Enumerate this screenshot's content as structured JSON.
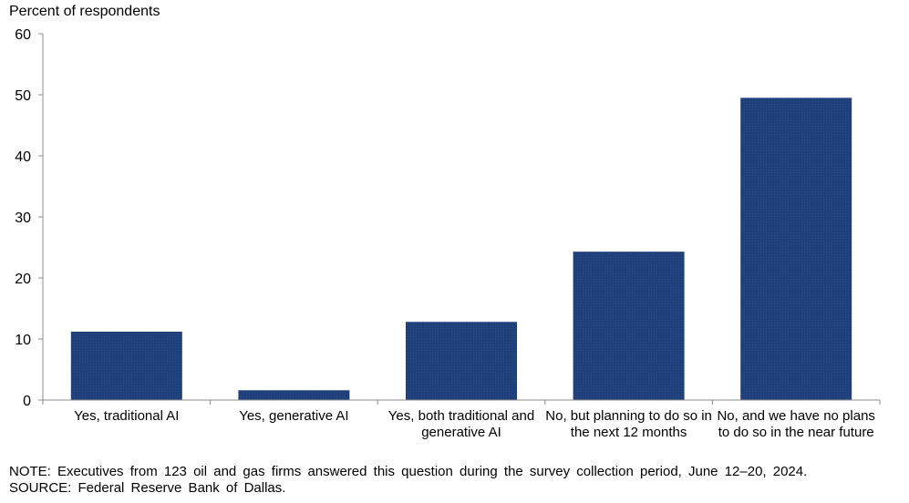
{
  "chart_data": {
    "type": "bar",
    "ylabel": "Percent of respondents",
    "categories": [
      "Yes, traditional AI",
      "Yes, generative AI",
      "Yes, both traditional and generative AI",
      "No, but planning to do so in the next 12 months",
      "No, and we have no plans to do so in the near future"
    ],
    "values": [
      11.2,
      1.6,
      12.8,
      24.3,
      49.5
    ],
    "ylim": [
      0,
      60
    ],
    "yticks": [
      0,
      10,
      20,
      30,
      40,
      50,
      60
    ],
    "grid": false,
    "bar_color": "#1f3f7a"
  },
  "note": "NOTE:  Executives  from  123  oil  and  gas  firms  answered  this  question  during  the  survey  collection  period,  June  12–20,  2024.",
  "source": "SOURCE:  Federal  Reserve  Bank  of  Dallas."
}
